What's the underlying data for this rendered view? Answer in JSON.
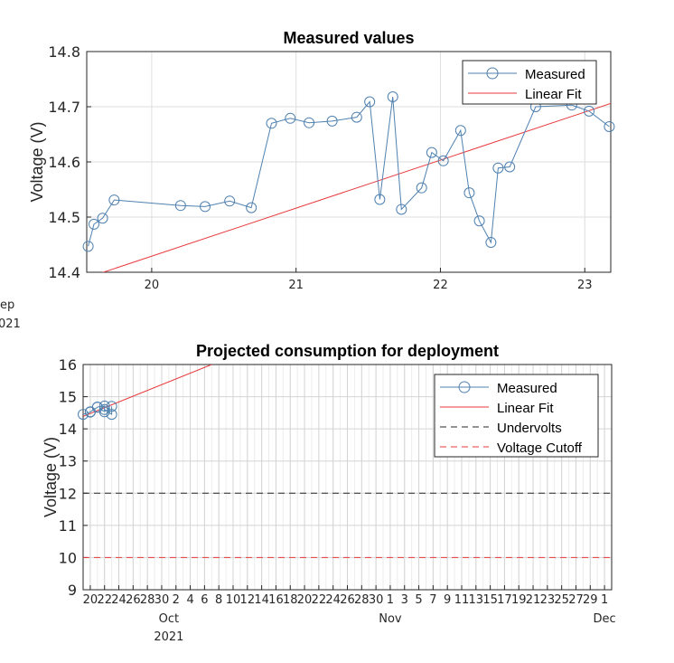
{
  "chart_data": [
    {
      "type": "line",
      "title": "Measured values",
      "xlabel": "",
      "ylabel": "Voltage (V)",
      "x_unit": "day of Sep 2021",
      "xlim": [
        19.55,
        23.18
      ],
      "ylim": [
        14.4,
        14.8
      ],
      "xticks": [
        20,
        21,
        22,
        23
      ],
      "xtick_labels": [
        "20",
        "21",
        "22",
        "23"
      ],
      "yticks": [
        14.4,
        14.5,
        14.6,
        14.7,
        14.8
      ],
      "ytick_labels": [
        "14.4",
        "14.5",
        "14.6",
        "14.7",
        "14.8"
      ],
      "x_secondary_labels": [
        "ep",
        "021"
      ],
      "grid": true,
      "legend_position": "top-right",
      "series": [
        {
          "name": "Measured",
          "style": "line-circle",
          "color": "#4f81b0",
          "x": [
            19.56,
            19.6,
            19.66,
            19.74,
            20.2,
            20.37,
            20.54,
            20.69,
            20.83,
            20.96,
            21.09,
            21.25,
            21.42,
            21.51,
            21.58,
            21.67,
            21.73,
            21.87,
            21.94,
            22.02,
            22.14,
            22.2,
            22.27,
            22.35,
            22.4,
            22.48,
            22.66,
            22.91,
            23.03,
            23.17
          ],
          "y": [
            14.447,
            14.487,
            14.498,
            14.531,
            14.521,
            14.519,
            14.529,
            14.517,
            14.67,
            14.679,
            14.671,
            14.674,
            14.681,
            14.709,
            14.532,
            14.718,
            14.514,
            14.553,
            14.617,
            14.602,
            14.657,
            14.544,
            14.493,
            14.454,
            14.589,
            14.591,
            14.7,
            14.703,
            14.692,
            14.664
          ]
        },
        {
          "name": "Linear Fit",
          "style": "line",
          "color": "#e8393b",
          "x": [
            19.55,
            23.18
          ],
          "y": [
            14.39,
            14.706
          ]
        }
      ]
    },
    {
      "type": "line",
      "title": "Projected consumption for deployment",
      "xlabel": "",
      "ylabel": "Voltage (V)",
      "x_unit": "date (2021)",
      "xlim": [
        "2021-09-19",
        "2021-12-02"
      ],
      "ylim": [
        9,
        16
      ],
      "yticks": [
        9,
        10,
        11,
        12,
        13,
        14,
        15,
        16
      ],
      "ytick_labels": [
        "9",
        "10",
        "11",
        "12",
        "13",
        "14",
        "15",
        "16"
      ],
      "xtick_labels": [
        "20",
        "22",
        "24",
        "26",
        "28",
        "30",
        "2",
        "4",
        "6",
        "8",
        "10",
        "12",
        "14",
        "16",
        "18",
        "20",
        "22",
        "24",
        "26",
        "28",
        "30",
        "1",
        "3",
        "5",
        "7",
        "9",
        "11",
        "13",
        "15",
        "17",
        "19",
        "21",
        "23",
        "25",
        "27",
        "29",
        "1"
      ],
      "xtick_dates": [
        "2021-09-20",
        "2021-09-22",
        "2021-09-24",
        "2021-09-26",
        "2021-09-28",
        "2021-09-30",
        "2021-10-02",
        "2021-10-04",
        "2021-10-06",
        "2021-10-08",
        "2021-10-10",
        "2021-10-12",
        "2021-10-14",
        "2021-10-16",
        "2021-10-18",
        "2021-10-20",
        "2021-10-22",
        "2021-10-24",
        "2021-10-26",
        "2021-10-28",
        "2021-10-30",
        "2021-11-01",
        "2021-11-03",
        "2021-11-05",
        "2021-11-07",
        "2021-11-09",
        "2021-11-11",
        "2021-11-13",
        "2021-11-15",
        "2021-11-17",
        "2021-11-19",
        "2021-11-21",
        "2021-11-23",
        "2021-11-25",
        "2021-11-27",
        "2021-11-29",
        "2021-12-01"
      ],
      "month_labels": [
        {
          "date": "2021-10-01",
          "text": "Oct"
        },
        {
          "date": "2021-11-01",
          "text": "Nov"
        },
        {
          "date": "2021-12-01",
          "text": "Dec"
        }
      ],
      "year_label": "2021",
      "year_label_date": "2021-10-01",
      "grid": true,
      "minor_grid": true,
      "legend_position": "top-right",
      "series": [
        {
          "name": "Measured",
          "style": "line-circle",
          "color": "#4f81b0",
          "x": [
            "2021-09-19",
            "2021-09-20",
            "2021-09-20",
            "2021-09-21",
            "2021-09-21",
            "2021-09-22",
            "2021-09-22",
            "2021-09-22",
            "2021-09-23",
            "2021-09-23"
          ],
          "y": [
            14.45,
            14.52,
            14.53,
            14.67,
            14.68,
            14.71,
            14.53,
            14.6,
            14.45,
            14.7
          ]
        },
        {
          "name": "Linear Fit",
          "style": "line",
          "color": "#e8393b",
          "x": [
            "2021-09-19",
            "2021-10-07"
          ],
          "y": [
            14.39,
            16
          ]
        },
        {
          "name": "Undervolts",
          "style": "dashed",
          "color": "#262626",
          "x": [
            "2021-09-19",
            "2021-12-02"
          ],
          "y": [
            12,
            12
          ]
        },
        {
          "name": "Voltage Cutoff",
          "style": "dashed",
          "color": "#e8393b",
          "x": [
            "2021-09-19",
            "2021-12-02"
          ],
          "y": [
            10,
            10
          ]
        }
      ]
    }
  ]
}
